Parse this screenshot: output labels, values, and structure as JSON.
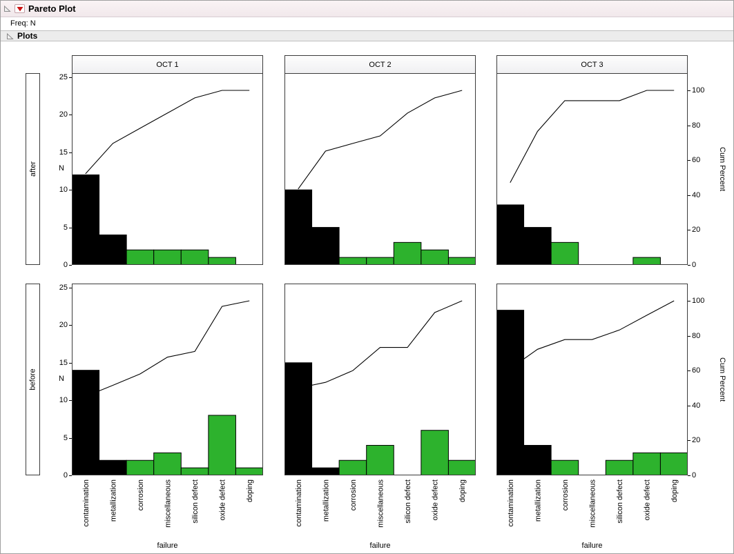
{
  "titlebar": {
    "title": "Pareto Plot",
    "freq": "Freq: N"
  },
  "sections": {
    "plots": "Plots"
  },
  "colors": {
    "bar_black": "#000000",
    "bar_green": "#2db22d",
    "cum_line": "#000000",
    "menu_red": "#cc1414",
    "outline_band": "#f5edf0",
    "section_band": "#ececec"
  },
  "chart_data": {
    "type": "bar",
    "subtype": "pareto-grid",
    "title": "Pareto Plot",
    "xlabel": "failure",
    "ylabel": "N",
    "y2label": "Cum Percent",
    "categories": [
      "contamination",
      "metallization",
      "corrosion",
      "miscellaneous",
      "silicon defect",
      "oxide defect",
      "doping"
    ],
    "col_headers": [
      "OCT 1",
      "OCT 2",
      "OCT 3"
    ],
    "row_headers": [
      "after",
      "before"
    ],
    "ylim": [
      0,
      25
    ],
    "y2lim": [
      0,
      100
    ],
    "yticks": [
      0,
      5,
      10,
      15,
      20,
      25
    ],
    "y2ticks": [
      0,
      20,
      40,
      60,
      80,
      100
    ],
    "grid": false,
    "legend": "none",
    "bar_color_rule": "contamination and metallization bars black; all other categories green",
    "cells": [
      {
        "row": "after",
        "col": "OCT 1",
        "values": [
          12,
          4,
          2,
          2,
          2,
          1,
          0
        ],
        "total": 23,
        "cum_percent": [
          52.2,
          69.6,
          78.3,
          87.0,
          95.7,
          100,
          100
        ]
      },
      {
        "row": "after",
        "col": "OCT 2",
        "values": [
          10,
          5,
          1,
          1,
          3,
          2,
          1
        ],
        "total": 23,
        "cum_percent": [
          43.5,
          65.2,
          69.6,
          73.9,
          87.0,
          95.7,
          100
        ]
      },
      {
        "row": "after",
        "col": "OCT 3",
        "values": [
          8,
          5,
          3,
          0,
          0,
          1,
          0
        ],
        "total": 17,
        "cum_percent": [
          47.1,
          76.5,
          94.1,
          94.1,
          94.1,
          100,
          100
        ]
      },
      {
        "row": "before",
        "col": "OCT 1",
        "values": [
          14,
          2,
          2,
          3,
          1,
          8,
          1
        ],
        "total": 31,
        "cum_percent": [
          45.2,
          51.6,
          58.1,
          67.7,
          71.0,
          96.8,
          100
        ]
      },
      {
        "row": "before",
        "col": "OCT 2",
        "values": [
          15,
          1,
          2,
          4,
          0,
          6,
          2
        ],
        "total": 30,
        "cum_percent": [
          50.0,
          53.3,
          60.0,
          73.3,
          73.3,
          93.3,
          100
        ]
      },
      {
        "row": "before",
        "col": "OCT 3",
        "values": [
          22,
          4,
          2,
          0,
          2,
          3,
          3
        ],
        "total": 36,
        "cum_percent": [
          61.1,
          72.2,
          77.8,
          77.8,
          83.3,
          91.7,
          100
        ]
      }
    ]
  }
}
